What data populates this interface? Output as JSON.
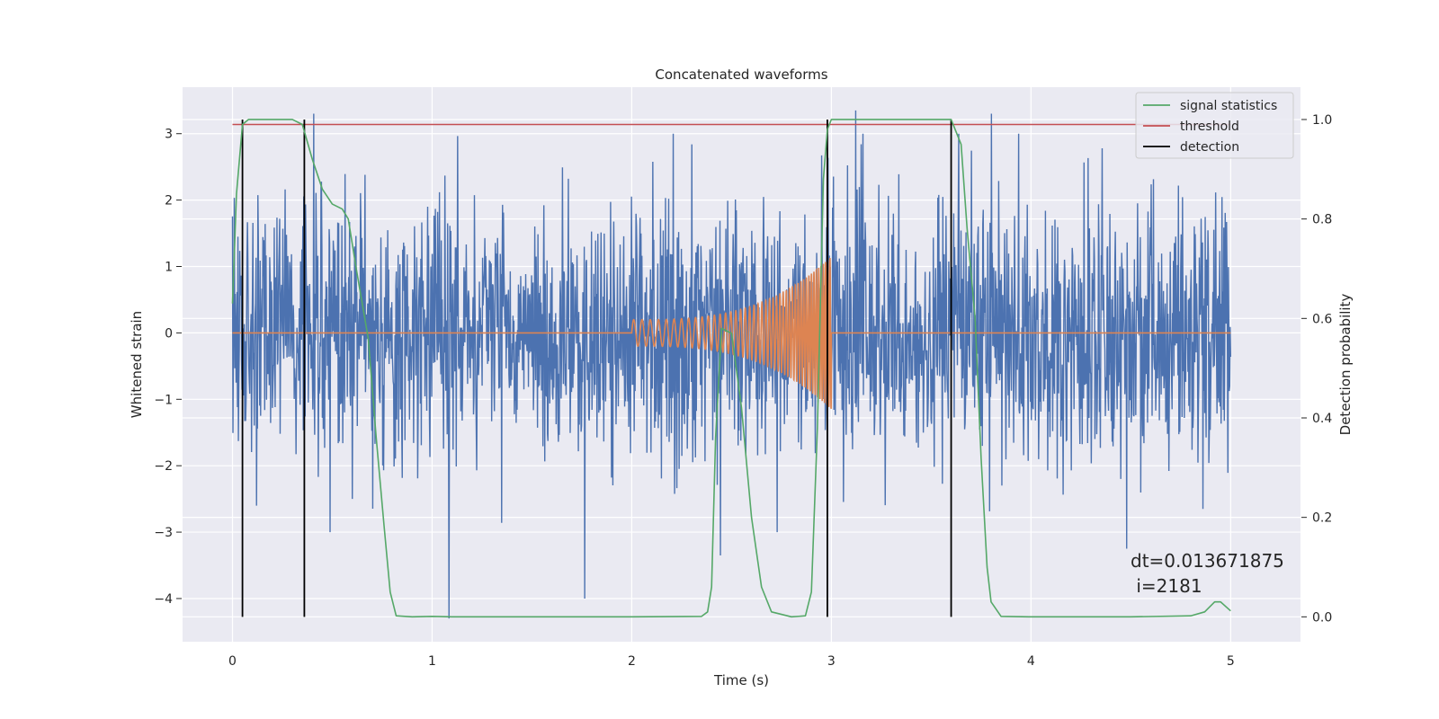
{
  "chart_data": {
    "type": "line",
    "title": "Concatenated waveforms",
    "xlabel": "Time (s)",
    "ylabel": "Whitened strain",
    "y2label": "Detection probability",
    "xlim": [
      -0.25,
      5.35
    ],
    "ylim": [
      -4.65,
      3.7
    ],
    "y2lim": [
      -0.05,
      1.065
    ],
    "xticks": [
      0,
      1,
      2,
      3,
      4,
      5
    ],
    "yticks": [
      -4,
      -3,
      -2,
      -1,
      0,
      1,
      2,
      3
    ],
    "y2ticks": [
      0.0,
      0.2,
      0.4,
      0.6,
      0.8,
      1.0
    ],
    "grid": true,
    "legend_position": "top-right",
    "colors": {
      "noise": "#4c72b0",
      "chirp": "#dd8452",
      "signal_statistics": "#55a868",
      "threshold": "#c44e52",
      "detection": "#000000",
      "plot_background": "#eaeaf2"
    },
    "legend": [
      {
        "name": "signal statistics",
        "color": "#55a868"
      },
      {
        "name": "threshold",
        "color": "#c44e52"
      },
      {
        "name": "detection",
        "color": "#000000"
      }
    ],
    "noise_series": {
      "x_start": 0,
      "x_end": 5,
      "points": 2200,
      "typical_amplitude": 1.2,
      "peak_values": [
        3.3,
        -4.3,
        -4.0,
        -3.35,
        3.35,
        3.3,
        -3.25
      ]
    },
    "chirp_series": {
      "x_start": 2.0,
      "x_end": 3.0,
      "amplitude_start": 0.2,
      "amplitude_end": 1.15,
      "baseline": 0
    },
    "signal_statistics": {
      "axis": "right",
      "x": [
        0,
        0.02,
        0.05,
        0.08,
        0.12,
        0.2,
        0.3,
        0.35,
        0.4,
        0.45,
        0.5,
        0.55,
        0.58,
        0.62,
        0.68,
        0.72,
        0.76,
        0.79,
        0.82,
        0.9,
        1.0,
        1.1,
        1.5,
        2.0,
        2.35,
        2.38,
        2.4,
        2.42,
        2.45,
        2.5,
        2.55,
        2.6,
        2.65,
        2.7,
        2.8,
        2.87,
        2.9,
        2.93,
        2.96,
        2.98,
        3.0,
        3.05,
        3.2,
        3.4,
        3.55,
        3.6,
        3.65,
        3.68,
        3.72,
        3.75,
        3.78,
        3.8,
        3.85,
        4.0,
        4.5,
        4.8,
        4.87,
        4.92,
        4.95,
        5.0
      ],
      "y": [
        0.63,
        0.85,
        0.99,
        1.0,
        1.0,
        1.0,
        1.0,
        0.99,
        0.92,
        0.86,
        0.83,
        0.82,
        0.8,
        0.7,
        0.56,
        0.36,
        0.18,
        0.05,
        0.002,
        0.0,
        0.001,
        0.0,
        0.0,
        0.0,
        0.001,
        0.01,
        0.06,
        0.36,
        0.58,
        0.57,
        0.42,
        0.2,
        0.06,
        0.01,
        0.0,
        0.002,
        0.05,
        0.38,
        0.88,
        0.98,
        1.0,
        1.0,
        1.0,
        1.0,
        1.0,
        1.0,
        0.95,
        0.78,
        0.6,
        0.32,
        0.1,
        0.03,
        0.001,
        0.0,
        0.0,
        0.002,
        0.01,
        0.03,
        0.03,
        0.012
      ]
    },
    "threshold": {
      "axis": "right",
      "value": 0.99,
      "x_start": 0,
      "x_end": 5
    },
    "detections": [
      0.05,
      0.36,
      2.98,
      3.6
    ],
    "annotation": {
      "line1": "dt=0.013671875",
      "line2": " i=2181"
    }
  }
}
